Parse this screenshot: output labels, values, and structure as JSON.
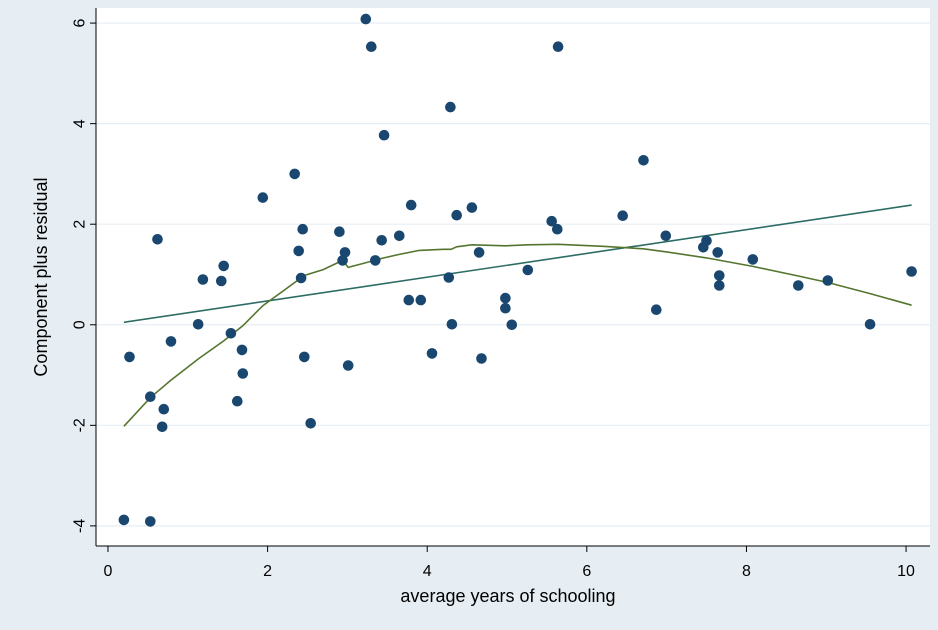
{
  "chart_data": {
    "type": "scatter",
    "xlabel": "average years of schooling",
    "ylabel": "Component plus residual",
    "xlim": [
      -0.15,
      10.3
    ],
    "ylim": [
      -4.4,
      6.3
    ],
    "x_ticks": [
      0,
      2,
      4,
      6,
      8,
      10
    ],
    "y_ticks": [
      -4,
      -2,
      0,
      2,
      4,
      6
    ],
    "grid": "horizontal",
    "colors": {
      "background": "#e6eef4",
      "plot_area": "#ffffff",
      "points": "#1a476f",
      "linear_fit": "#2d6d66",
      "lowess": "#55752f",
      "gridlines": "#e6eef4"
    },
    "points": [
      [
        0.2,
        -3.88
      ],
      [
        0.27,
        -0.64
      ],
      [
        0.53,
        -3.91
      ],
      [
        0.53,
        -1.43
      ],
      [
        0.62,
        1.7
      ],
      [
        0.68,
        -2.03
      ],
      [
        0.7,
        -1.68
      ],
      [
        0.79,
        -0.33
      ],
      [
        1.13,
        0.01
      ],
      [
        1.19,
        0.9
      ],
      [
        1.42,
        0.87
      ],
      [
        1.45,
        1.17
      ],
      [
        1.54,
        -0.17
      ],
      [
        1.62,
        -1.52
      ],
      [
        1.68,
        -0.5
      ],
      [
        1.69,
        -0.97
      ],
      [
        1.94,
        2.53
      ],
      [
        2.34,
        3.0
      ],
      [
        2.39,
        1.47
      ],
      [
        2.42,
        0.93
      ],
      [
        2.44,
        1.9
      ],
      [
        2.46,
        -0.64
      ],
      [
        2.54,
        -1.96
      ],
      [
        2.9,
        1.85
      ],
      [
        2.94,
        1.28
      ],
      [
        2.97,
        1.44
      ],
      [
        3.01,
        -0.81
      ],
      [
        3.23,
        6.08
      ],
      [
        3.3,
        5.53
      ],
      [
        3.35,
        1.28
      ],
      [
        3.43,
        1.68
      ],
      [
        3.46,
        3.77
      ],
      [
        3.65,
        1.77
      ],
      [
        3.77,
        0.49
      ],
      [
        3.8,
        2.38
      ],
      [
        3.92,
        0.49
      ],
      [
        4.06,
        -0.57
      ],
      [
        4.27,
        0.94
      ],
      [
        4.29,
        4.33
      ],
      [
        4.31,
        0.01
      ],
      [
        4.37,
        2.18
      ],
      [
        4.56,
        2.33
      ],
      [
        4.65,
        1.44
      ],
      [
        4.68,
        -0.67
      ],
      [
        4.98,
        0.53
      ],
      [
        4.98,
        0.33
      ],
      [
        5.06,
        0.0
      ],
      [
        5.26,
        1.09
      ],
      [
        5.56,
        2.06
      ],
      [
        5.63,
        1.9
      ],
      [
        5.64,
        5.53
      ],
      [
        6.45,
        2.17
      ],
      [
        6.71,
        3.27
      ],
      [
        6.87,
        0.3
      ],
      [
        6.99,
        1.77
      ],
      [
        7.46,
        1.54
      ],
      [
        7.5,
        1.67
      ],
      [
        7.64,
        1.44
      ],
      [
        7.66,
        0.98
      ],
      [
        7.66,
        0.78
      ],
      [
        8.08,
        1.3
      ],
      [
        8.65,
        0.78
      ],
      [
        9.02,
        0.88
      ],
      [
        9.55,
        0.01
      ],
      [
        10.07,
        1.06
      ]
    ],
    "series": [
      {
        "type": "line",
        "values": [
          [
            0.2,
            0.05
          ],
          [
            10.07,
            2.38
          ]
        ]
      },
      {
        "type": "line",
        "values": [
          [
            0.2,
            -2.02
          ],
          [
            0.53,
            -1.45
          ],
          [
            0.79,
            -1.1
          ],
          [
            1.13,
            -0.68
          ],
          [
            1.45,
            -0.32
          ],
          [
            1.69,
            -0.02
          ],
          [
            1.94,
            0.38
          ],
          [
            2.2,
            0.68
          ],
          [
            2.46,
            0.98
          ],
          [
            2.7,
            1.1
          ],
          [
            2.94,
            1.28
          ],
          [
            3.01,
            1.14
          ],
          [
            3.2,
            1.22
          ],
          [
            3.43,
            1.32
          ],
          [
            3.65,
            1.4
          ],
          [
            3.9,
            1.48
          ],
          [
            4.2,
            1.5
          ],
          [
            4.3,
            1.5
          ],
          [
            4.37,
            1.55
          ],
          [
            4.56,
            1.59
          ],
          [
            4.98,
            1.57
          ],
          [
            5.26,
            1.59
          ],
          [
            5.64,
            1.6
          ],
          [
            6.2,
            1.56
          ],
          [
            6.71,
            1.51
          ],
          [
            7.0,
            1.45
          ],
          [
            7.5,
            1.33
          ],
          [
            8.08,
            1.16
          ],
          [
            8.65,
            0.97
          ],
          [
            9.02,
            0.84
          ],
          [
            9.55,
            0.62
          ],
          [
            10.07,
            0.39
          ]
        ]
      }
    ]
  }
}
